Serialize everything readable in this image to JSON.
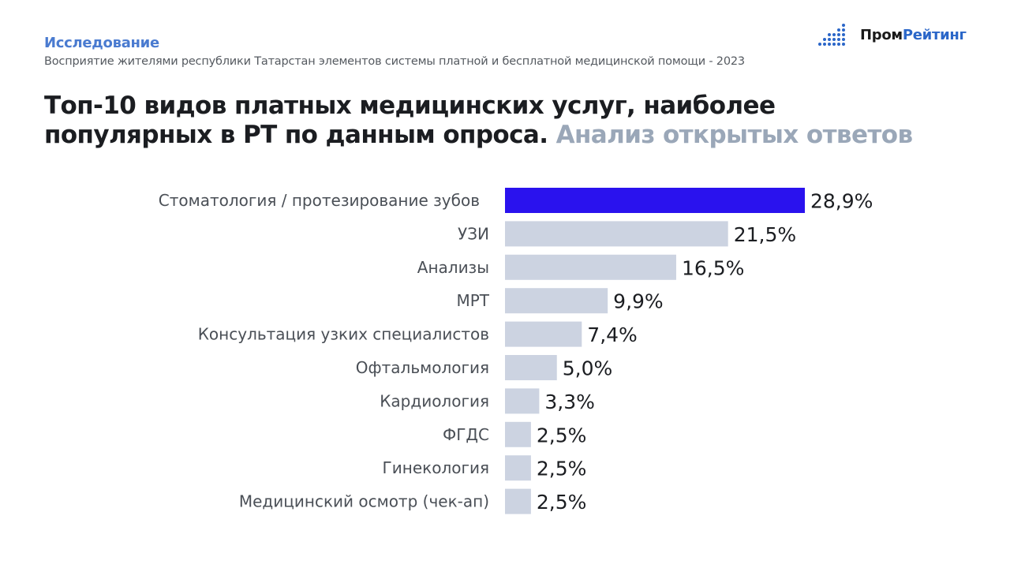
{
  "header": {
    "kicker": "Исследование",
    "subtitle": "Восприятие жителями республики Татарстан элементов системы платной и бесплатной медицинской помощи - 2023",
    "logo_part1": "Пром",
    "logo_part2": "Рейтинг"
  },
  "headline": {
    "line1": "Топ-10 видов платных медицинских услуг, наиболее",
    "line2_main": "популярных в РТ по данным опроса.",
    "line2_muted": "Анализ открытых ответов"
  },
  "colors": {
    "highlight_bar": "#2a12ee",
    "default_bar": "#ccd3e1",
    "logo_accent": "#2a66c8",
    "muted_headline": "#9aa7b8"
  },
  "chart_data": {
    "type": "bar",
    "orientation": "horizontal",
    "categories": [
      "Стоматология / протезирование зубов",
      "УЗИ",
      "Анализы",
      "МРТ",
      "Консультация узких специалистов",
      "Офтальмология",
      "Кардиология",
      "ФГДС",
      "Гинекология",
      "Медицинский осмотр (чек-ап)"
    ],
    "values": [
      28.9,
      21.5,
      16.5,
      9.9,
      7.4,
      5.0,
      3.3,
      2.5,
      2.5,
      2.5
    ],
    "value_labels": [
      "28,9%",
      "21,5%",
      "16,5%",
      "9,9%",
      "7,4%",
      "5,0%",
      "3,3%",
      "2,5%",
      "2,5%",
      "2,5%"
    ],
    "highlight_index": 0,
    "grid": false,
    "legend": false
  }
}
